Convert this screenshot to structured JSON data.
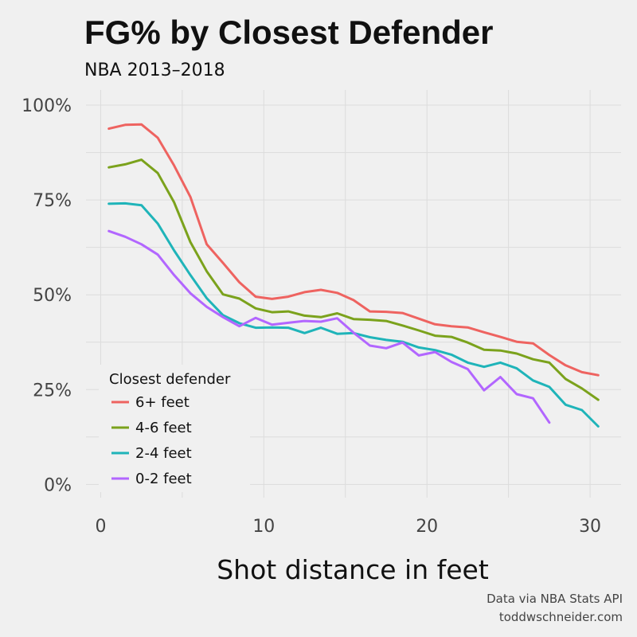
{
  "chart_data": {
    "type": "line",
    "title": "FG% by Closest Defender",
    "subtitle": "NBA 2013–2018",
    "xlabel": "Shot distance in feet",
    "ylabel": "",
    "xlim": [
      -0.9,
      31.9
    ],
    "ylim": [
      -3.5,
      104
    ],
    "x_ticks": [
      0,
      10,
      20,
      30
    ],
    "x_tick_labels": [
      "0",
      "10",
      "20",
      "30"
    ],
    "y_ticks": [
      0,
      25,
      50,
      75,
      100
    ],
    "y_tick_labels": [
      "0%",
      "25%",
      "50%",
      "75%",
      "100%"
    ],
    "grid": true,
    "legend_title": "Closest defender",
    "legend_position": "bottom-left",
    "caption_lines": [
      "Data via NBA Stats API",
      "toddwschneider.com"
    ],
    "series": [
      {
        "name": "6+ feet",
        "color": "#ee6360",
        "x": [
          0.5,
          1.5,
          2.5,
          3.5,
          4.5,
          5.5,
          6.5,
          7.5,
          8.5,
          9.5,
          10.5,
          11.5,
          12.5,
          13.5,
          14.5,
          15.5,
          16.5,
          17.5,
          18.5,
          19.5,
          20.5,
          21.5,
          22.5,
          23.5,
          24.5,
          25.5,
          26.5,
          27.5,
          28.5,
          29.5,
          30.5
        ],
        "y": [
          93.8,
          94.8,
          94.9,
          91.4,
          84.1,
          75.8,
          63.3,
          58.4,
          53.3,
          49.5,
          48.9,
          49.5,
          50.7,
          51.3,
          50.5,
          48.6,
          45.6,
          45.5,
          45.2,
          43.7,
          42.2,
          41.7,
          41.4,
          40.1,
          38.9,
          37.6,
          37.2,
          34.1,
          31.4,
          29.6,
          28.8
        ]
      },
      {
        "name": "4-6 feet",
        "color": "#7ba21c",
        "x": [
          0.5,
          1.5,
          2.5,
          3.5,
          4.5,
          5.5,
          6.5,
          7.5,
          8.5,
          9.5,
          10.5,
          11.5,
          12.5,
          13.5,
          14.5,
          15.5,
          16.5,
          17.5,
          18.5,
          19.5,
          20.5,
          21.5,
          22.5,
          23.5,
          24.5,
          25.5,
          26.5,
          27.5,
          28.5,
          29.5,
          30.5
        ],
        "y": [
          83.6,
          84.4,
          85.6,
          82.1,
          74.4,
          63.9,
          56.2,
          50.1,
          49.0,
          46.4,
          45.4,
          45.6,
          44.5,
          44.1,
          45.1,
          43.6,
          43.4,
          43.1,
          41.9,
          40.6,
          39.2,
          38.9,
          37.4,
          35.5,
          35.3,
          34.5,
          33.0,
          32.1,
          27.8,
          25.3,
          22.3
        ]
      },
      {
        "name": "2-4 feet",
        "color": "#1fb4b9",
        "x": [
          0.5,
          1.5,
          2.5,
          3.5,
          4.5,
          5.5,
          6.5,
          7.5,
          8.5,
          9.5,
          10.5,
          11.5,
          12.5,
          13.5,
          14.5,
          15.5,
          16.5,
          17.5,
          18.5,
          19.5,
          20.5,
          21.5,
          22.5,
          23.5,
          24.5,
          25.5,
          26.5,
          27.5,
          28.5,
          29.5,
          30.5
        ],
        "y": [
          74.0,
          74.1,
          73.6,
          68.8,
          61.7,
          55.2,
          49.1,
          44.6,
          42.5,
          41.3,
          41.4,
          41.3,
          39.9,
          41.3,
          39.7,
          39.9,
          38.8,
          38.1,
          37.6,
          36.1,
          35.4,
          34.2,
          32.1,
          31.0,
          32.1,
          30.6,
          27.4,
          25.7,
          21.0,
          19.6,
          15.3
        ]
      },
      {
        "name": "0-2 feet",
        "color": "#b266ff",
        "x": [
          0.5,
          1.5,
          2.5,
          3.5,
          4.5,
          5.5,
          6.5,
          7.5,
          8.5,
          9.5,
          10.5,
          11.5,
          12.5,
          13.5,
          14.5,
          15.5,
          16.5,
          17.5,
          18.5,
          19.5,
          20.5,
          21.5,
          22.5,
          23.5,
          24.5,
          25.5,
          26.5,
          27.5
        ],
        "y": [
          66.8,
          65.3,
          63.3,
          60.6,
          55.2,
          50.4,
          46.8,
          44.1,
          41.7,
          43.9,
          42.1,
          42.6,
          43.1,
          42.9,
          43.8,
          40.0,
          36.6,
          35.9,
          37.4,
          34.0,
          34.9,
          32.3,
          30.4,
          24.8,
          28.3,
          23.8,
          22.7,
          16.3
        ]
      }
    ]
  }
}
